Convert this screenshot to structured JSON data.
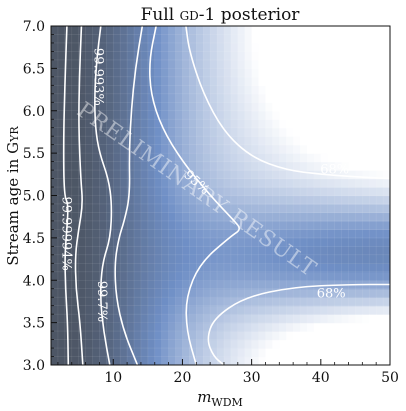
{
  "chart_data": {
    "type": "heatmap",
    "title": "Full GD-1 posterior",
    "xlabel": "m_WDM",
    "ylabel": "Stream age in Gyr",
    "xlim": [
      1,
      50
    ],
    "ylim": [
      3.0,
      7.0
    ],
    "x_ticks": [
      10,
      20,
      30,
      40,
      50
    ],
    "y_ticks": [
      3.0,
      3.5,
      4.0,
      4.5,
      5.0,
      5.5,
      6.0,
      6.5,
      7.0
    ],
    "x_tick_labels": [
      "10",
      "20",
      "30",
      "40",
      "50"
    ],
    "y_tick_labels": [
      "3.0",
      "3.5",
      "4.0",
      "4.5",
      "5.0",
      "5.5",
      "6.0",
      "6.5",
      "7.0"
    ],
    "grid": true,
    "colormap": {
      "low": "#404040",
      "mid": "#6f8fc6",
      "high": "#ffffff"
    },
    "contours": [
      {
        "label": "68%",
        "label_positions": [
          [
            42,
            5.3
          ],
          [
            41.5,
            3.84
          ]
        ]
      },
      {
        "label": "95%",
        "label_positions": [
          [
            22,
            5.15
          ]
        ]
      },
      {
        "label": "99.7%",
        "label_positions": [
          [
            8.3,
            3.75
          ]
        ]
      },
      {
        "label": "99.993%",
        "label_positions": [
          [
            7.8,
            6.4
          ]
        ]
      },
      {
        "label": "99.99994%",
        "label_positions": [
          [
            3.2,
            4.55
          ]
        ]
      }
    ],
    "watermark": "PRELIMINARY RESULT"
  }
}
